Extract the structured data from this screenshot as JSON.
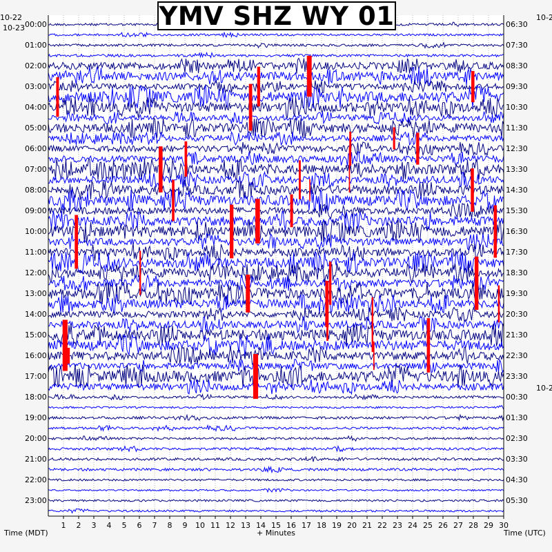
{
  "title": "YMV SHZ WY 01",
  "chart_data": {
    "type": "heatmap",
    "title": "YMV SHZ WY 01",
    "xlabel": "+ Minutes",
    "left_axis_label": "Time (MDT)",
    "right_axis_label": "Time (UTC)",
    "x_ticks": [
      "1",
      "2",
      "3",
      "4",
      "5",
      "6",
      "7",
      "8",
      "9",
      "10",
      "11",
      "12",
      "13",
      "14",
      "15",
      "16",
      "17",
      "18",
      "19",
      "20",
      "21",
      "22",
      "23",
      "24",
      "25",
      "26",
      "27",
      "28",
      "29",
      "30"
    ],
    "x_range": [
      0,
      30
    ],
    "left_date_top": "10-22",
    "left_date_start": "10-23",
    "right_date_top": "10-2",
    "right_date_mid": "10-2",
    "left_time_labels": [
      "00:00",
      "01:00",
      "02:00",
      "03:00",
      "04:00",
      "05:00",
      "06:00",
      "07:00",
      "08:00",
      "09:00",
      "10:00",
      "11:00",
      "12:00",
      "13:00",
      "14:00",
      "15:00",
      "16:00",
      "17:00",
      "18:00",
      "19:00",
      "20:00",
      "21:00",
      "22:00",
      "23:00"
    ],
    "right_time_labels": [
      "06:30",
      "07:30",
      "08:30",
      "09:30",
      "10:30",
      "11:30",
      "12:30",
      "13:30",
      "14:30",
      "15:30",
      "16:30",
      "17:30",
      "18:30",
      "19:30",
      "20:30",
      "21:30",
      "22:30",
      "23:30",
      "00:30",
      "01:30",
      "02:30",
      "03:30",
      "04:30",
      "05:30"
    ],
    "trace_colors": [
      "#000080",
      "#0000ff"
    ],
    "clip_color": "#ff0000",
    "rows": 48,
    "row_minutes": 30,
    "grid": true,
    "active_hours": [
      "02:00",
      "03:00",
      "04:00",
      "05:00",
      "06:00",
      "07:00",
      "08:00",
      "09:00",
      "10:00",
      "11:00",
      "12:00",
      "13:00",
      "14:00",
      "15:00",
      "16:00",
      "17:00"
    ]
  }
}
